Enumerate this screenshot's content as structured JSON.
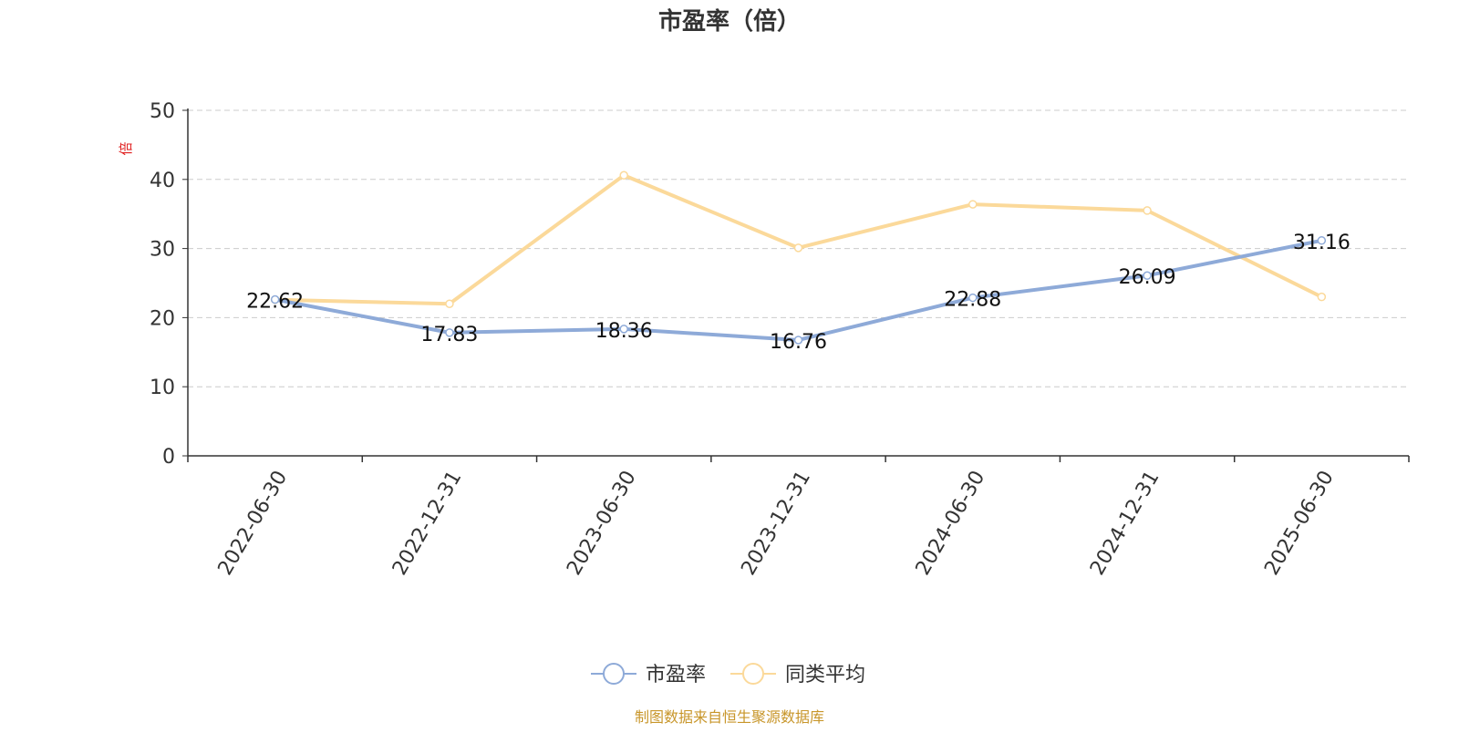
{
  "chart_data": {
    "type": "line",
    "title": "市盈率（倍）",
    "ylabel": "倍",
    "xlabel": "",
    "categories": [
      "2022-06-30",
      "2022-12-31",
      "2023-06-30",
      "2023-12-31",
      "2024-06-30",
      "2024-12-31",
      "2025-06-30"
    ],
    "ylim": [
      0,
      50
    ],
    "yticks": [
      "0",
      "10",
      "20",
      "30",
      "40",
      "50"
    ],
    "grid": true,
    "legend_position": "bottom",
    "series": [
      {
        "name": "市盈率",
        "values": [
          22.62,
          17.83,
          18.36,
          16.76,
          22.88,
          26.09,
          31.16
        ],
        "data_labels": [
          "22.62",
          "17.83",
          "18.36",
          "16.76",
          "22.88",
          "26.09",
          "31.16"
        ],
        "color": "#8eaad8"
      },
      {
        "name": "同类平均",
        "values": [
          22.6,
          22.0,
          40.6,
          30.1,
          36.4,
          35.5,
          23.0
        ],
        "color": "#fbd99a"
      }
    ]
  },
  "source_note": "制图数据来自恒生聚源数据库",
  "colors": {
    "axis": "#333333",
    "grid": "#cccccc",
    "text": "#333333",
    "ylabel": "#e02020",
    "source": "#c8962a"
  }
}
